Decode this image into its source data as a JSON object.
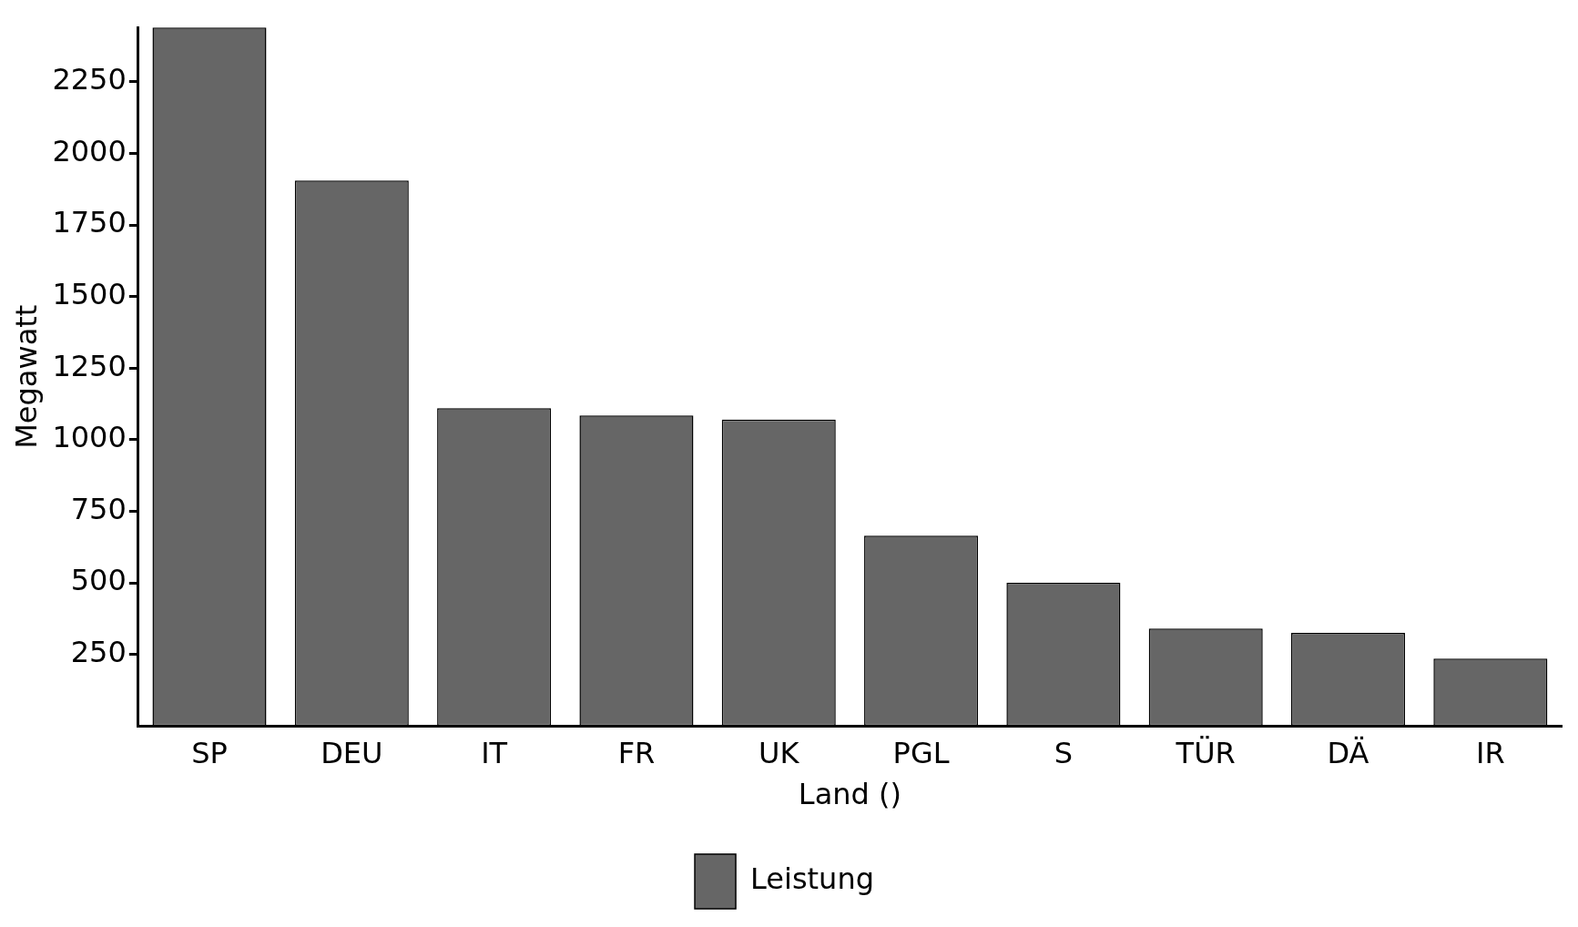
{
  "chart_data": {
    "type": "bar",
    "xlabel": "Land ()",
    "ylabel": "Megawatt",
    "categories": [
      "SP",
      "DEU",
      "IT",
      "FR",
      "UK",
      "PGL",
      "S",
      "TÜR",
      "DÄ",
      "IR"
    ],
    "series": [
      {
        "name": "Leistung",
        "color": "#666666",
        "values": [
          2440,
          1905,
          1110,
          1085,
          1070,
          665,
          500,
          340,
          325,
          235
        ]
      }
    ],
    "ylim": [
      0,
      2440
    ],
    "yticks": [
      250,
      500,
      750,
      1000,
      1250,
      1500,
      1750,
      2000,
      2250
    ],
    "grid": false,
    "legend": "bottom"
  }
}
